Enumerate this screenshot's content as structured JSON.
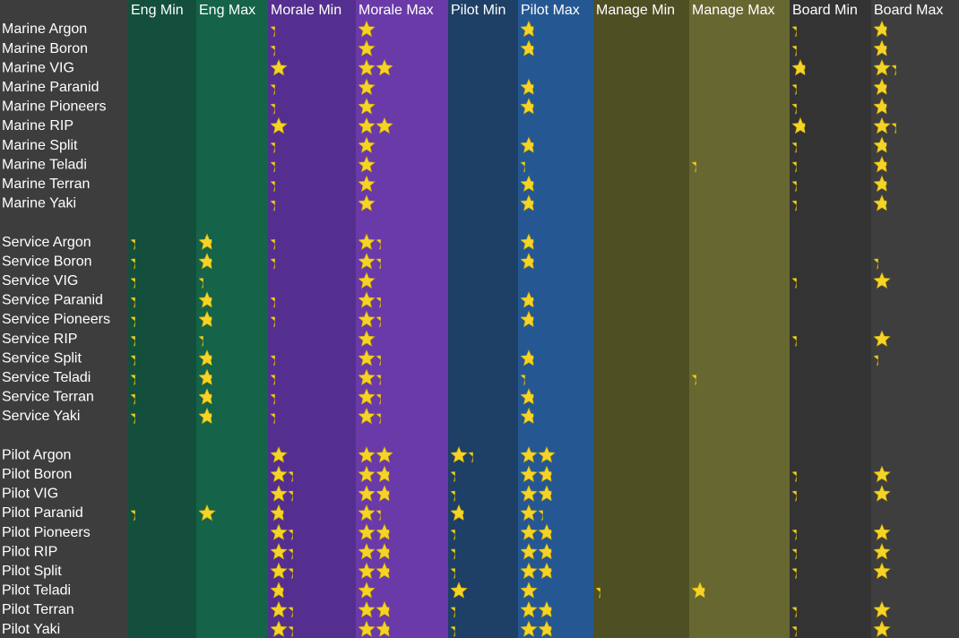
{
  "columns": [
    "Eng Min",
    "Eng Max",
    "Morale Min",
    "Morale Max",
    "Pilot Min",
    "Pilot Max",
    "Manage Min",
    "Manage Max",
    "Board Min",
    "Board Max"
  ],
  "groups": [
    {
      "rows": [
        {
          "label": "Marine Argon",
          "values": [
            null,
            null,
            0.25,
            1,
            null,
            0.75,
            null,
            null,
            0.25,
            0.75
          ]
        },
        {
          "label": "Marine Boron",
          "values": [
            null,
            null,
            0.25,
            1,
            null,
            0.75,
            null,
            null,
            0.25,
            0.75
          ]
        },
        {
          "label": "Marine VIG",
          "values": [
            null,
            null,
            1,
            2,
            null,
            null,
            null,
            null,
            0.75,
            1.25
          ]
        },
        {
          "label": "Marine Paranid",
          "values": [
            null,
            null,
            0.25,
            1,
            null,
            0.75,
            null,
            null,
            0.25,
            0.75
          ]
        },
        {
          "label": "Marine Pioneers",
          "values": [
            null,
            null,
            0.25,
            1,
            null,
            0.75,
            null,
            null,
            0.25,
            0.75
          ]
        },
        {
          "label": "Marine RIP",
          "values": [
            null,
            null,
            1,
            2,
            null,
            null,
            null,
            null,
            0.75,
            1.25
          ]
        },
        {
          "label": "Marine Split",
          "values": [
            null,
            null,
            0.25,
            1,
            null,
            0.75,
            null,
            null,
            0.25,
            0.75
          ]
        },
        {
          "label": "Marine Teladi",
          "values": [
            null,
            null,
            0.25,
            1,
            null,
            0.25,
            null,
            0.25,
            0.25,
            0.75
          ]
        },
        {
          "label": "Marine Terran",
          "values": [
            null,
            null,
            0.25,
            1,
            null,
            0.75,
            null,
            null,
            0.25,
            0.75
          ]
        },
        {
          "label": "Marine Yaki",
          "values": [
            null,
            null,
            0.25,
            1,
            null,
            0.75,
            null,
            null,
            0.25,
            0.75
          ]
        }
      ]
    },
    {
      "rows": [
        {
          "label": "Service Argon",
          "values": [
            0.25,
            0.75,
            0.25,
            1.25,
            null,
            0.75,
            null,
            null,
            null,
            null
          ]
        },
        {
          "label": "Service Boron",
          "values": [
            0.25,
            0.75,
            0.25,
            1.25,
            null,
            0.75,
            null,
            null,
            null,
            0.25
          ]
        },
        {
          "label": "Service VIG",
          "values": [
            0.25,
            0.25,
            null,
            1,
            null,
            null,
            null,
            null,
            0.25,
            1
          ]
        },
        {
          "label": "Service Paranid",
          "values": [
            0.25,
            0.75,
            0.25,
            1.25,
            null,
            0.75,
            null,
            null,
            null,
            null
          ]
        },
        {
          "label": "Service Pioneers",
          "values": [
            0.25,
            0.75,
            0.25,
            1.25,
            null,
            0.75,
            null,
            null,
            null,
            null
          ]
        },
        {
          "label": "Service RIP",
          "values": [
            0.25,
            0.25,
            null,
            1,
            null,
            null,
            null,
            null,
            0.25,
            1
          ]
        },
        {
          "label": "Service Split",
          "values": [
            0.25,
            0.75,
            0.25,
            1.25,
            null,
            0.75,
            null,
            null,
            null,
            0.25
          ]
        },
        {
          "label": "Service Teladi",
          "values": [
            0.25,
            0.75,
            0.25,
            1.25,
            null,
            0.25,
            null,
            0.25,
            null,
            null
          ]
        },
        {
          "label": "Service Terran",
          "values": [
            0.25,
            0.75,
            0.25,
            1.25,
            null,
            0.75,
            null,
            null,
            null,
            null
          ]
        },
        {
          "label": "Service Yaki",
          "values": [
            0.25,
            0.75,
            0.25,
            1.25,
            null,
            0.75,
            null,
            null,
            null,
            null
          ]
        }
      ]
    },
    {
      "rows": [
        {
          "label": "Pilot Argon",
          "values": [
            null,
            null,
            1,
            2,
            1.25,
            2,
            null,
            null,
            null,
            null
          ]
        },
        {
          "label": "Pilot Boron",
          "values": [
            null,
            null,
            1.25,
            1.75,
            0.25,
            1.75,
            null,
            null,
            0.25,
            1
          ]
        },
        {
          "label": "Pilot VIG",
          "values": [
            null,
            null,
            1.25,
            1.75,
            0.25,
            1.75,
            null,
            null,
            0.25,
            1
          ]
        },
        {
          "label": "Pilot Paranid",
          "values": [
            0.25,
            1,
            0.75,
            1.25,
            0.75,
            1.25,
            null,
            null,
            null,
            null
          ]
        },
        {
          "label": "Pilot Pioneers",
          "values": [
            null,
            null,
            1.25,
            1.75,
            0.25,
            1.75,
            null,
            null,
            0.25,
            1
          ]
        },
        {
          "label": "Pilot RIP",
          "values": [
            null,
            null,
            1.25,
            1.75,
            0.25,
            1.75,
            null,
            null,
            0.25,
            1
          ]
        },
        {
          "label": "Pilot Split",
          "values": [
            null,
            null,
            1.25,
            1.75,
            0.25,
            1.75,
            null,
            null,
            0.25,
            1
          ]
        },
        {
          "label": "Pilot Teladi",
          "values": [
            null,
            null,
            0.75,
            1,
            1,
            1,
            0.25,
            0.75,
            null,
            null
          ]
        },
        {
          "label": "Pilot Terran",
          "values": [
            null,
            null,
            1.25,
            1.75,
            0.25,
            1.75,
            null,
            null,
            0.25,
            1
          ]
        },
        {
          "label": "Pilot Yaki",
          "values": [
            null,
            null,
            1.25,
            1.75,
            0.25,
            1.75,
            null,
            null,
            0.25,
            1
          ]
        }
      ]
    }
  ]
}
